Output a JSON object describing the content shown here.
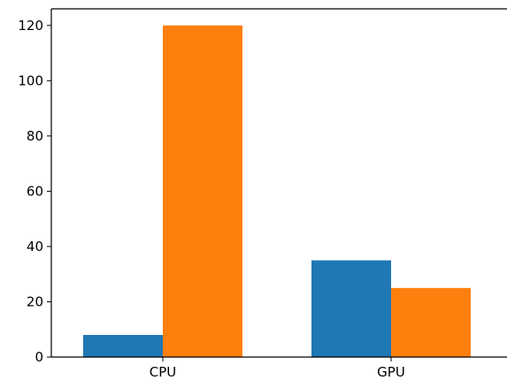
{
  "chart_data": {
    "type": "bar",
    "categories": [
      "CPU",
      "GPU"
    ],
    "series": [
      {
        "values": [
          8,
          35
        ],
        "color": "#1f77b4"
      },
      {
        "values": [
          120,
          25
        ],
        "color": "#ff7f0e"
      }
    ],
    "title": "",
    "xlabel": "",
    "ylabel": "",
    "ylim": [
      0,
      126
    ],
    "yticks": [
      0,
      20,
      40,
      60,
      80,
      100,
      120
    ],
    "grid": false,
    "legend": "none"
  }
}
